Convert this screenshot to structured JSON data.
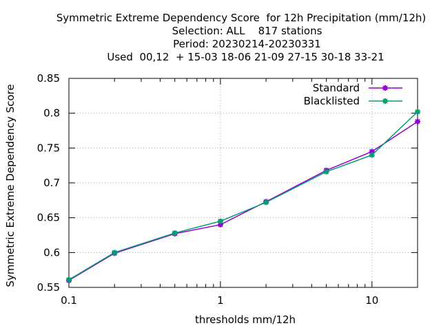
{
  "chart_data": {
    "type": "line",
    "title_lines": [
      "Symmetric Extreme Dependency Score  for 12h Precipitation (mm/12h)",
      "Selection: ALL    817 stations",
      "Period: 20230214-20230331",
      "Used  00,12  + 15-03 18-06 21-09 27-15 30-18 33-21"
    ],
    "xlabel": "thresholds mm/12h",
    "ylabel": "Symmetric Extreme Dependency Score",
    "x_scale": "log",
    "xlim": [
      0.1,
      20
    ],
    "ylim": [
      0.55,
      0.85
    ],
    "x_ticks": [
      {
        "value": 0.1,
        "label": "0.1"
      },
      {
        "value": 1,
        "label": "1"
      },
      {
        "value": 10,
        "label": "10"
      }
    ],
    "x_minor_ticks": [
      0.2,
      0.3,
      0.4,
      0.5,
      0.6,
      0.7,
      0.8,
      0.9,
      2,
      3,
      4,
      5,
      6,
      7,
      8,
      9,
      20
    ],
    "y_ticks": [
      {
        "value": 0.55,
        "label": "0.55"
      },
      {
        "value": 0.6,
        "label": "0.6"
      },
      {
        "value": 0.65,
        "label": "0.65"
      },
      {
        "value": 0.7,
        "label": "0.7"
      },
      {
        "value": 0.75,
        "label": "0.75"
      },
      {
        "value": 0.8,
        "label": "0.8"
      },
      {
        "value": 0.85,
        "label": "0.85"
      }
    ],
    "grid": true,
    "legend_position": "top-right",
    "x": [
      0.1,
      0.2,
      0.5,
      1,
      2,
      5,
      10,
      20
    ],
    "series": [
      {
        "name": "Standard",
        "color": "#9400d3",
        "values": [
          0.56,
          0.599,
          0.627,
          0.64,
          0.673,
          0.718,
          0.745,
          0.788
        ]
      },
      {
        "name": "Blacklisted",
        "color": "#009e73",
        "values": [
          0.561,
          0.6,
          0.628,
          0.645,
          0.672,
          0.716,
          0.74,
          0.802
        ]
      }
    ]
  }
}
